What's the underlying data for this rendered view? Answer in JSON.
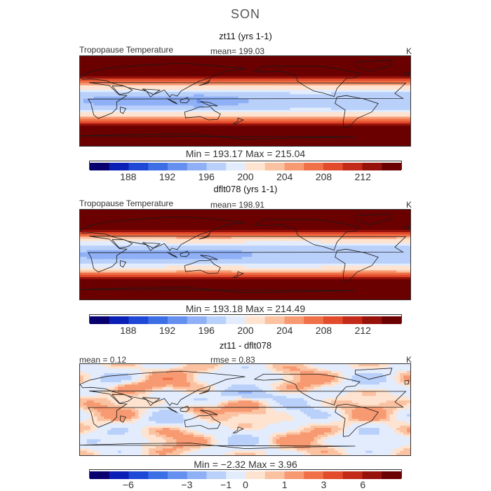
{
  "figure": {
    "title": "SON"
  },
  "colormaps": {
    "full": [
      "#08006e",
      "#0a1fb5",
      "#1f48d6",
      "#3c6ee6",
      "#6590f0",
      "#8fb0f6",
      "#b9d0fa",
      "#e2ecfd",
      "#fde3d0",
      "#fbc2a1",
      "#f79a72",
      "#f07148",
      "#e24b2b",
      "#c42a19",
      "#98120c",
      "#6b0000"
    ]
  },
  "chart_data": [
    {
      "type": "heatmap",
      "name": "panel-1",
      "title": "zt11 (yrs 1-1)",
      "variable_label": "Tropopause Temperature",
      "mean_label": "mean= 199.03",
      "units": "K",
      "min_max": "Min = 193.17 Max = 215.04",
      "stats": {
        "min": 193.17,
        "max": 215.04,
        "mean": 199.03
      },
      "colorbar": {
        "levels": [
          184,
          186,
          188,
          190,
          192,
          194,
          196,
          198,
          200,
          202,
          204,
          206,
          208,
          210,
          212,
          214,
          216
        ],
        "tick_values": [
          188,
          192,
          196,
          200,
          204,
          208,
          212
        ],
        "tick_labels": [
          "188",
          "192",
          "196",
          "200",
          "204",
          "208",
          "212"
        ]
      }
    },
    {
      "type": "heatmap",
      "name": "panel-2",
      "title": "dflt078 (yrs 1-1)",
      "variable_label": "Tropopause Temperature",
      "mean_label": "mean= 198.91",
      "units": "K",
      "min_max": "Min = 193.18 Max = 214.49",
      "stats": {
        "min": 193.18,
        "max": 214.49,
        "mean": 198.91
      },
      "colorbar": {
        "levels": [
          184,
          186,
          188,
          190,
          192,
          194,
          196,
          198,
          200,
          202,
          204,
          206,
          208,
          210,
          212,
          214,
          216
        ],
        "tick_values": [
          188,
          192,
          196,
          200,
          204,
          208,
          212
        ],
        "tick_labels": [
          "188",
          "192",
          "196",
          "200",
          "204",
          "208",
          "212"
        ]
      }
    },
    {
      "type": "heatmap",
      "name": "panel-3",
      "title": "zt11 - dflt078",
      "mean_label": "mean = 0.12",
      "rmse_label": "rmse = 0.83",
      "units": "K",
      "min_max": "Min = −2.32 Max = 3.96",
      "stats": {
        "min": -2.32,
        "max": 3.96,
        "mean": 0.12,
        "rmse": 0.83
      },
      "colorbar": {
        "levels": [
          -8,
          -7,
          -6,
          -5,
          -4,
          -3,
          -2,
          -1,
          0,
          0.5,
          1,
          2,
          3,
          4,
          6,
          7,
          8
        ],
        "tick_values": [
          -6,
          -3,
          -1,
          0,
          1,
          3,
          6
        ],
        "tick_labels": [
          "−6",
          "−3",
          "−1",
          "0",
          "1",
          "3",
          "6"
        ]
      }
    }
  ]
}
